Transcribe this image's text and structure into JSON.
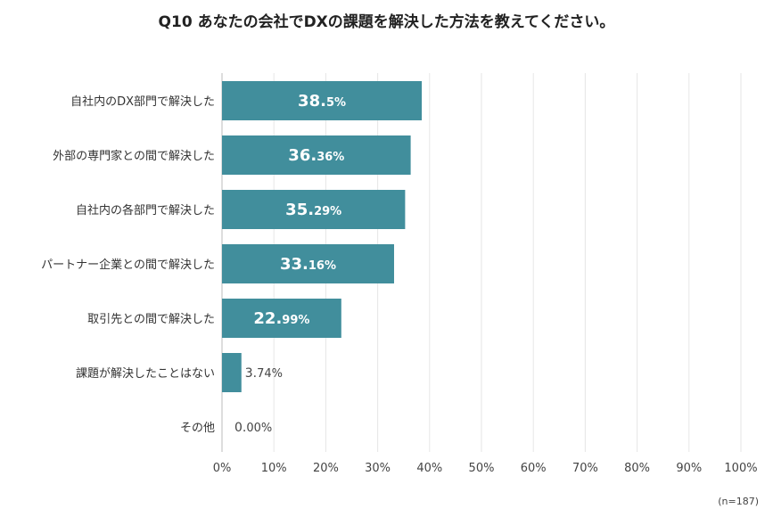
{
  "title": "Q10 あなたの会社でDXの課題を解決した方法を教えてください。",
  "note": "(n=187)",
  "colors": {
    "bar": "#418e9c",
    "grid": "#e6e6e6",
    "axis": "#bbbbbb"
  },
  "chart_data": {
    "type": "bar",
    "orientation": "horizontal",
    "categories": [
      "自社内のDX部門で解決した",
      "外部の専門家との間で解決した",
      "自社内の各部門で解決した",
      "パートナー企業との間で解決した",
      "取引先との間で解決した",
      "課題が解決したことはない",
      "その他"
    ],
    "values": [
      38.5,
      36.36,
      35.29,
      33.16,
      22.99,
      3.74,
      0.0
    ],
    "value_labels": [
      {
        "int": "38.",
        "dec": "5%"
      },
      {
        "int": "36.",
        "dec": "36%"
      },
      {
        "int": "35.",
        "dec": "29%"
      },
      {
        "int": "33.",
        "dec": "16%"
      },
      {
        "int": "22.",
        "dec": "99%"
      },
      {
        "int": "3.",
        "dec": "74%"
      },
      {
        "int": "0.",
        "dec": "00%"
      }
    ],
    "xlim": [
      0,
      100
    ],
    "xticks": [
      "0%",
      "10%",
      "20%",
      "30%",
      "40%",
      "50%",
      "60%",
      "70%",
      "80%",
      "90%",
      "100%"
    ],
    "grid": true
  }
}
